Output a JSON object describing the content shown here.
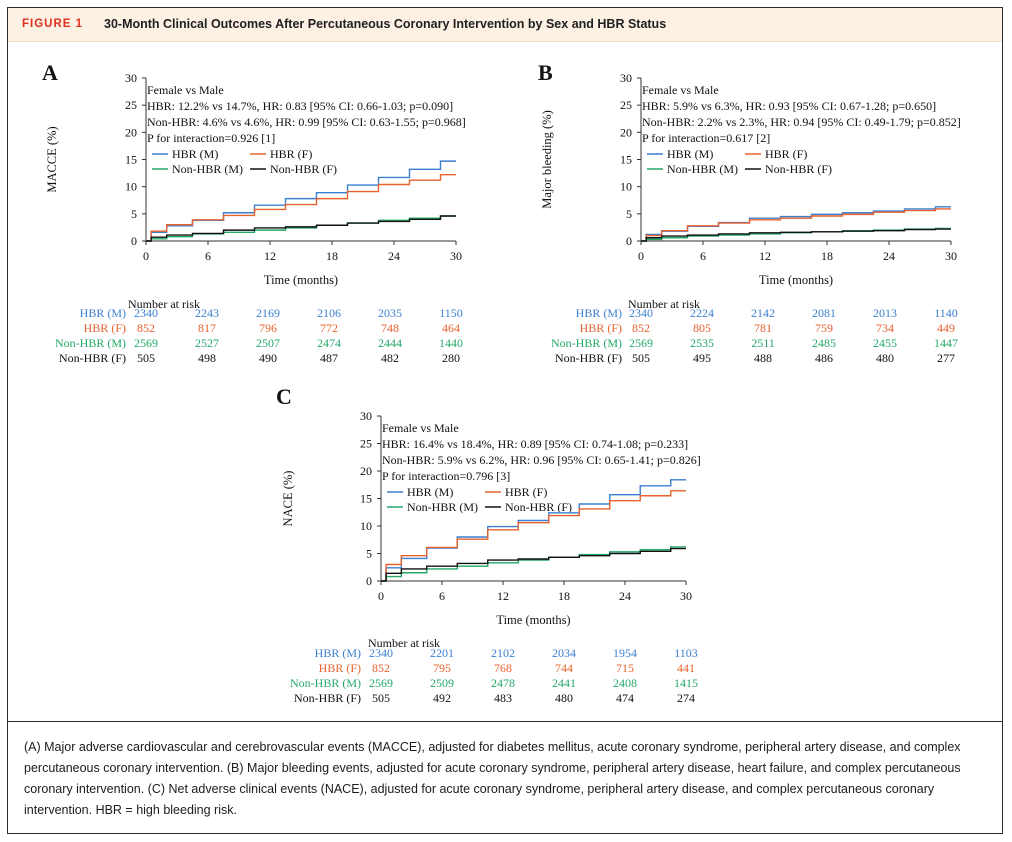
{
  "figure": {
    "label": "FIGURE 1",
    "title": "30-Month Clinical Outcomes After Percutaneous Coronary Intervention by Sex and HBR Status"
  },
  "colors": {
    "hbr_m": "#3b7fd0",
    "hbr_f": "#e8622e",
    "nonhbr_m": "#23a86a",
    "nonhbr_f": "#111111"
  },
  "chart_data": [
    {
      "panel": "A",
      "type": "line",
      "ylabel": "MACCE (%)",
      "xlabel": "Time (months)",
      "xlim": [
        0,
        30
      ],
      "ylim": [
        0,
        30
      ],
      "xticks": [
        0,
        6,
        12,
        18,
        24,
        30
      ],
      "yticks": [
        0,
        5,
        10,
        15,
        20,
        25,
        30
      ],
      "annotation": [
        "Female vs Male",
        "HBR: 12.2% vs 14.7%, HR: 0.83 [95% CI: 0.66-1.03; p=0.090]",
        "Non-HBR: 4.6% vs 4.6%, HR: 0.99 [95% CI: 0.63-1.55; p=0.968]",
        "P for interaction=0.926 [1]"
      ],
      "legend_position": "top-left",
      "series": [
        {
          "name": "HBR (M)",
          "color_key": "hbr_m",
          "x": [
            0,
            1,
            3,
            6,
            9,
            12,
            15,
            18,
            21,
            24,
            27,
            30
          ],
          "y": [
            0,
            1.6,
            2.8,
            3.8,
            5.2,
            6.6,
            7.8,
            8.9,
            10.3,
            11.7,
            13.2,
            14.7
          ]
        },
        {
          "name": "HBR (F)",
          "color_key": "hbr_f",
          "x": [
            0,
            1,
            3,
            6,
            9,
            12,
            15,
            18,
            21,
            24,
            27,
            30
          ],
          "y": [
            0,
            1.8,
            3.0,
            3.9,
            4.7,
            5.8,
            6.7,
            7.8,
            9.1,
            10.4,
            11.2,
            12.2
          ]
        },
        {
          "name": "Non-HBR (M)",
          "color_key": "nonhbr_m",
          "x": [
            0,
            1,
            3,
            6,
            9,
            12,
            15,
            18,
            21,
            24,
            27,
            30
          ],
          "y": [
            0,
            0.4,
            0.8,
            1.3,
            1.6,
            2.0,
            2.4,
            2.9,
            3.3,
            3.8,
            4.2,
            4.6
          ]
        },
        {
          "name": "Non-HBR (F)",
          "color_key": "nonhbr_f",
          "x": [
            0,
            1,
            3,
            6,
            9,
            12,
            15,
            18,
            21,
            24,
            27,
            30
          ],
          "y": [
            0,
            0.7,
            1.1,
            1.4,
            2.0,
            2.4,
            2.6,
            2.9,
            3.3,
            3.6,
            4.0,
            4.6
          ]
        }
      ],
      "risk_table": {
        "heading": "Number at risk",
        "rows": [
          {
            "label": "HBR (M)",
            "color_key": "hbr_m",
            "values": [
              "2340",
              "2243",
              "2169",
              "2106",
              "2035",
              "1150"
            ]
          },
          {
            "label": "HBR (F)",
            "color_key": "hbr_f",
            "values": [
              "852",
              "817",
              "796",
              "772",
              "748",
              "464"
            ]
          },
          {
            "label": "Non-HBR (M)",
            "color_key": "nonhbr_m",
            "values": [
              "2569",
              "2527",
              "2507",
              "2474",
              "2444",
              "1440"
            ]
          },
          {
            "label": "Non-HBR (F)",
            "color_key": "nonhbr_f",
            "values": [
              "505",
              "498",
              "490",
              "487",
              "482",
              "280"
            ]
          }
        ]
      }
    },
    {
      "panel": "B",
      "type": "line",
      "ylabel": "Major bleeding (%)",
      "xlabel": "Time (months)",
      "xlim": [
        0,
        30
      ],
      "ylim": [
        0,
        30
      ],
      "xticks": [
        0,
        6,
        12,
        18,
        24,
        30
      ],
      "yticks": [
        0,
        5,
        10,
        15,
        20,
        25,
        30
      ],
      "annotation": [
        "Female vs Male",
        "HBR: 5.9% vs 6.3%, HR: 0.93 [95% CI: 0.67-1.28; p=0.650]",
        "Non-HBR: 2.2% vs 2.3%, HR: 0.94 [95% CI: 0.49-1.79; p=0.852]",
        "P for interaction=0.617 [2]"
      ],
      "legend_position": "top-left",
      "series": [
        {
          "name": "HBR (M)",
          "color_key": "hbr_m",
          "x": [
            0,
            1,
            3,
            6,
            9,
            12,
            15,
            18,
            21,
            24,
            27,
            30
          ],
          "y": [
            0,
            1.2,
            1.8,
            2.7,
            3.4,
            4.2,
            4.5,
            4.9,
            5.2,
            5.5,
            5.9,
            6.3
          ]
        },
        {
          "name": "HBR (F)",
          "color_key": "hbr_f",
          "x": [
            0,
            1,
            3,
            6,
            9,
            12,
            15,
            18,
            21,
            24,
            27,
            30
          ],
          "y": [
            0,
            1.0,
            1.9,
            2.8,
            3.3,
            3.9,
            4.2,
            4.6,
            4.9,
            5.3,
            5.6,
            5.9
          ]
        },
        {
          "name": "Non-HBR (M)",
          "color_key": "nonhbr_m",
          "x": [
            0,
            1,
            3,
            6,
            9,
            12,
            15,
            18,
            21,
            24,
            27,
            30
          ],
          "y": [
            0,
            0.3,
            0.6,
            0.9,
            1.1,
            1.3,
            1.5,
            1.7,
            1.9,
            2.0,
            2.2,
            2.3
          ]
        },
        {
          "name": "Non-HBR (F)",
          "color_key": "nonhbr_f",
          "x": [
            0,
            1,
            3,
            6,
            9,
            12,
            15,
            18,
            21,
            24,
            27,
            30
          ],
          "y": [
            0,
            0.6,
            0.9,
            1.1,
            1.3,
            1.5,
            1.6,
            1.7,
            1.8,
            1.9,
            2.1,
            2.2
          ]
        }
      ],
      "risk_table": {
        "heading": "Number at risk",
        "rows": [
          {
            "label": "HBR (M)",
            "color_key": "hbr_m",
            "values": [
              "2340",
              "2224",
              "2142",
              "2081",
              "2013",
              "1140"
            ]
          },
          {
            "label": "HBR (F)",
            "color_key": "hbr_f",
            "values": [
              "852",
              "805",
              "781",
              "759",
              "734",
              "449"
            ]
          },
          {
            "label": "Non-HBR (M)",
            "color_key": "nonhbr_m",
            "values": [
              "2569",
              "2535",
              "2511",
              "2485",
              "2455",
              "1447"
            ]
          },
          {
            "label": "Non-HBR (F)",
            "color_key": "nonhbr_f",
            "values": [
              "505",
              "495",
              "488",
              "486",
              "480",
              "277"
            ]
          }
        ]
      }
    },
    {
      "panel": "C",
      "type": "line",
      "ylabel": "NACE (%)",
      "xlabel": "Time (months)",
      "xlim": [
        0,
        30
      ],
      "ylim": [
        0,
        30
      ],
      "xticks": [
        0,
        6,
        12,
        18,
        24,
        30
      ],
      "yticks": [
        0,
        5,
        10,
        15,
        20,
        25,
        30
      ],
      "annotation": [
        "Female vs Male",
        "HBR: 16.4% vs 18.4%, HR: 0.89 [95% CI: 0.74-1.08; p=0.233]",
        "Non-HBR: 5.9% vs 6.2%, HR: 0.96 [95% CI: 0.65-1.41; p=0.826]",
        "P for interaction=0.796 [3]"
      ],
      "legend_position": "top-left",
      "series": [
        {
          "name": "HBR (M)",
          "color_key": "hbr_m",
          "x": [
            0,
            1,
            3,
            6,
            9,
            12,
            15,
            18,
            21,
            24,
            27,
            30
          ],
          "y": [
            0,
            2.4,
            4.1,
            6.0,
            8.0,
            9.9,
            11.0,
            12.4,
            14.0,
            15.7,
            17.3,
            18.4
          ]
        },
        {
          "name": "HBR (F)",
          "color_key": "hbr_f",
          "x": [
            0,
            1,
            3,
            6,
            9,
            12,
            15,
            18,
            21,
            24,
            27,
            30
          ],
          "y": [
            0,
            3.0,
            4.6,
            6.1,
            7.6,
            9.3,
            10.6,
            11.9,
            13.1,
            14.6,
            15.5,
            16.4
          ]
        },
        {
          "name": "Non-HBR (M)",
          "color_key": "nonhbr_m",
          "x": [
            0,
            1,
            3,
            6,
            9,
            12,
            15,
            18,
            21,
            24,
            27,
            30
          ],
          "y": [
            0,
            0.8,
            1.5,
            2.2,
            2.7,
            3.3,
            3.8,
            4.3,
            4.8,
            5.3,
            5.7,
            6.2
          ]
        },
        {
          "name": "Non-HBR (F)",
          "color_key": "nonhbr_f",
          "x": [
            0,
            1,
            3,
            6,
            9,
            12,
            15,
            18,
            21,
            24,
            27,
            30
          ],
          "y": [
            0,
            1.4,
            2.2,
            2.7,
            3.2,
            3.8,
            4.0,
            4.3,
            4.6,
            5.0,
            5.4,
            5.9
          ]
        }
      ],
      "risk_table": {
        "heading": "Number at risk",
        "rows": [
          {
            "label": "HBR (M)",
            "color_key": "hbr_m",
            "values": [
              "2340",
              "2201",
              "2102",
              "2034",
              "1954",
              "1103"
            ]
          },
          {
            "label": "HBR (F)",
            "color_key": "hbr_f",
            "values": [
              "852",
              "795",
              "768",
              "744",
              "715",
              "441"
            ]
          },
          {
            "label": "Non-HBR (M)",
            "color_key": "nonhbr_m",
            "values": [
              "2569",
              "2509",
              "2478",
              "2441",
              "2408",
              "1415"
            ]
          },
          {
            "label": "Non-HBR (F)",
            "color_key": "nonhbr_f",
            "values": [
              "505",
              "492",
              "483",
              "480",
              "474",
              "274"
            ]
          }
        ]
      }
    }
  ],
  "caption": "(A) Major adverse cardiovascular and cerebrovascular events (MACCE), adjusted for diabetes mellitus, acute coronary syndrome, peripheral artery disease, and complex percutaneous coronary intervention. (B) Major bleeding events, adjusted for acute coronary syndrome, peripheral artery disease, heart failure, and complex percutaneous coronary intervention. (C) Net adverse clinical events (NACE), adjusted for acute coronary syndrome, peripheral artery disease, and complex percutaneous coronary intervention. HBR = high bleeding risk."
}
